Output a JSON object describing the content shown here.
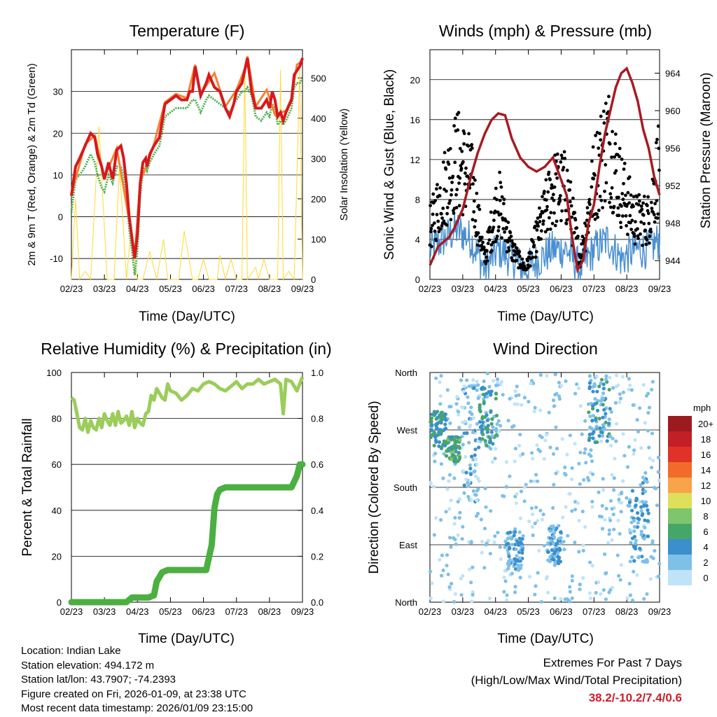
{
  "colors": {
    "temp_red": "#d7191c",
    "temp_orange": "#f58231",
    "dew_green": "#4daf4a",
    "solar_yellow": "#ffd92f",
    "wind_blue": "#4a90d0",
    "gust_black": "#000000",
    "pressure_maroon": "#a61c24",
    "rh_lightgreen": "#9acd5a",
    "precip_green": "#4caf41",
    "extremes_red": "#cc1f2b"
  },
  "footer": {
    "location": "Location: Indian Lake",
    "elevation": "Station elevation: 494.172 m",
    "latlon": "Station lat/lon: 43.7907; -74.2393",
    "created": "Figure created on Fri, 2026-01-09, at 23:38 UTC",
    "timestamp": "Most recent data timestamp: 2026/01/09 23:15:00"
  },
  "extremes": {
    "title": "Extremes For Past 7 Days",
    "subtitle": "(High/Low/Max Wind/Total Precipitation)",
    "values": "38.2/-10.2/7.4/0.6"
  },
  "chart_data": [
    {
      "id": "temperature",
      "type": "line",
      "title": "Temperature (F)",
      "xlabel": "Time (Day/UTC)",
      "ylabel": "2m & 9m T (Red, Orange) & 2m Td (Green)",
      "y2label": "Solar Insolation (Yellow)",
      "x_ticks": [
        "02/23",
        "03/23",
        "04/23",
        "05/23",
        "06/23",
        "07/23",
        "08/23",
        "09/23"
      ],
      "xlim": [
        0,
        168
      ],
      "ylim": [
        -15,
        40
      ],
      "y_ticks": [
        -10,
        0,
        10,
        20,
        30
      ],
      "y2lim": [
        0,
        570
      ],
      "y2_ticks": [
        0,
        100,
        200,
        300,
        400,
        500
      ],
      "series": [
        {
          "name": "2m T",
          "x": [
            0,
            3,
            6,
            10,
            14,
            17,
            19,
            22,
            24,
            27,
            30,
            33,
            36,
            38,
            40,
            42,
            44,
            46,
            48,
            50,
            52,
            54,
            55,
            57,
            60,
            64,
            68,
            72,
            76,
            80,
            84,
            86,
            88,
            90,
            94,
            98,
            100,
            104,
            108,
            112,
            115,
            118,
            120,
            122,
            124,
            126,
            128,
            131,
            134,
            138,
            142,
            144,
            146,
            148,
            150,
            152,
            154,
            156,
            160,
            162,
            164,
            166,
            168
          ],
          "y": [
            5,
            12,
            14,
            17,
            20,
            19,
            15,
            12,
            9,
            13,
            9,
            16,
            17,
            14,
            8,
            0,
            -5,
            -10,
            -4,
            8,
            13,
            14,
            12,
            15,
            17,
            19,
            27,
            28,
            29,
            28,
            28,
            30,
            30,
            36,
            29,
            32,
            34,
            31,
            30,
            26,
            24,
            27,
            30,
            31,
            32,
            35,
            38,
            30,
            26,
            26,
            28,
            26,
            30,
            28,
            24,
            25,
            23,
            25,
            28,
            34,
            35,
            36,
            38
          ]
        },
        {
          "name": "9m T",
          "x": [
            0,
            10,
            17,
            24,
            33,
            44,
            46,
            50,
            55,
            60,
            68,
            76,
            84,
            90,
            94,
            104,
            112,
            120,
            126,
            128,
            134,
            142,
            148,
            156,
            160,
            164,
            168
          ],
          "y": [
            5,
            17,
            19,
            9,
            16,
            -5,
            -10,
            8,
            12,
            17,
            27,
            29,
            28,
            36,
            29,
            34,
            26,
            30,
            35,
            38,
            26,
            30,
            24,
            25,
            28,
            36,
            37
          ]
        },
        {
          "name": "2m Td",
          "x": [
            0,
            3,
            6,
            10,
            14,
            17,
            19,
            22,
            24,
            27,
            30,
            33,
            36,
            38,
            40,
            42,
            44,
            46,
            48,
            50,
            52,
            54,
            55,
            57,
            60,
            64,
            68,
            72,
            76,
            80,
            84,
            86,
            88,
            90,
            94,
            98,
            100,
            104,
            108,
            112,
            115,
            118,
            120,
            122,
            124,
            126,
            128,
            131,
            134,
            138,
            142,
            144,
            146,
            148,
            150,
            152,
            154,
            156,
            160,
            162,
            164,
            166,
            168
          ],
          "y": [
            1,
            9,
            10,
            12,
            15,
            13,
            10,
            7,
            6,
            10,
            8,
            12,
            12,
            10,
            5,
            -3,
            -8,
            -14,
            -8,
            5,
            11,
            12,
            11,
            13,
            15,
            17,
            24,
            25,
            26,
            26,
            26,
            27,
            28,
            28,
            25,
            28,
            29,
            28,
            27,
            26,
            25,
            27,
            28,
            29,
            30,
            30,
            31,
            29,
            24,
            23,
            25,
            24,
            27,
            26,
            22,
            23,
            22,
            23,
            26,
            31,
            32,
            32,
            33
          ]
        },
        {
          "name": "Solar",
          "axis": "y2",
          "x": [
            0,
            3,
            6,
            10,
            14,
            20,
            26,
            31,
            35,
            40,
            43,
            48,
            52,
            57,
            62,
            67,
            70,
            78,
            82,
            88,
            92,
            96,
            100,
            106,
            108,
            112,
            116,
            120,
            124,
            126,
            128,
            130,
            134,
            136,
            140,
            144,
            150,
            152,
            154,
            158,
            162,
            166,
            168
          ],
          "y": [
            0,
            200,
            0,
            20,
            0,
            380,
            0,
            0,
            280,
            0,
            110,
            0,
            0,
            70,
            0,
            100,
            0,
            0,
            120,
            0,
            0,
            50,
            0,
            0,
            60,
            0,
            50,
            0,
            0,
            520,
            0,
            10,
            30,
            0,
            50,
            0,
            0,
            520,
            0,
            20,
            0,
            520,
            0
          ]
        }
      ]
    },
    {
      "id": "winds",
      "type": "line",
      "title": "Winds (mph) & Pressure (mb)",
      "xlabel": "Time (Day/UTC)",
      "ylabel": "Sonic Wind & Gust (Blue, Black)",
      "y2label": "Station Pressure (Maroon)",
      "x_ticks": [
        "02/23",
        "03/23",
        "04/23",
        "05/23",
        "06/23",
        "07/23",
        "08/23",
        "09/23"
      ],
      "xlim": [
        0,
        168
      ],
      "ylim": [
        0,
        23
      ],
      "y_ticks": [
        0,
        4,
        8,
        12,
        16,
        20
      ],
      "y2lim": [
        942.0,
        966.5
      ],
      "y2_ticks": [
        944,
        948,
        952,
        956,
        960,
        964
      ],
      "series": [
        {
          "name": "Sonic Wind",
          "x": [
            0,
            10,
            20,
            30,
            40,
            50,
            60,
            70,
            80,
            90,
            100,
            110,
            120,
            130,
            140,
            150,
            160,
            168
          ],
          "y": [
            3,
            4,
            5,
            4,
            1,
            3,
            2,
            1,
            2,
            3,
            3,
            1,
            3,
            4,
            2,
            3,
            3,
            4
          ]
        },
        {
          "name": "Gust",
          "x": [
            0,
            10,
            20,
            30,
            40,
            50,
            60,
            70,
            80,
            90,
            100,
            110,
            120,
            130,
            140,
            150,
            160,
            168
          ],
          "y": [
            5,
            9,
            12,
            10,
            2,
            8,
            3,
            1,
            5,
            9,
            9,
            2,
            10,
            14,
            9,
            6,
            6,
            12
          ]
        },
        {
          "name": "Pressure",
          "axis": "y2",
          "x": [
            0,
            6,
            10,
            14,
            18,
            24,
            30,
            35,
            40,
            45,
            50,
            55,
            60,
            66,
            72,
            78,
            84,
            90,
            95,
            100,
            104,
            108,
            112,
            116,
            120,
            124,
            128,
            132,
            136,
            140,
            144,
            148,
            152,
            156,
            160,
            164,
            168
          ],
          "y": [
            943.5,
            945.5,
            946,
            946.5,
            947.5,
            949.5,
            953,
            955.5,
            957.5,
            959,
            959.7,
            959.5,
            957,
            955,
            954,
            953.5,
            954,
            955,
            953,
            951,
            946.5,
            943,
            944,
            948,
            950,
            954,
            957.5,
            960,
            962.5,
            964,
            964.5,
            963,
            961,
            958,
            956,
            953,
            951
          ]
        }
      ]
    },
    {
      "id": "rh_precip",
      "type": "line",
      "title": "Relative Humidity (%) & Precipitation (in)",
      "xlabel": "Time (Day/UTC)",
      "ylabel": "Percent & Total Rainfall",
      "x_ticks": [
        "02/23",
        "03/23",
        "04/23",
        "05/23",
        "06/23",
        "07/23",
        "08/23",
        "09/23"
      ],
      "xlim": [
        0,
        168
      ],
      "ylim": [
        0,
        100
      ],
      "y_ticks": [
        0,
        20,
        40,
        60,
        80,
        100
      ],
      "y2lim": [
        0,
        1.0
      ],
      "y2_ticks": [
        "0.0",
        "0.2",
        "0.4",
        "0.6",
        "0.8",
        "1.0"
      ],
      "series": [
        {
          "name": "RH",
          "x": [
            0,
            2,
            4,
            6,
            8,
            10,
            12,
            14,
            16,
            18,
            20,
            22,
            24,
            26,
            28,
            30,
            32,
            34,
            36,
            38,
            40,
            42,
            44,
            46,
            48,
            50,
            52,
            54,
            56,
            58,
            60,
            62,
            64,
            66,
            68,
            70,
            72,
            76,
            80,
            84,
            88,
            92,
            96,
            100,
            104,
            108,
            112,
            116,
            120,
            124,
            128,
            132,
            136,
            140,
            144,
            148,
            152,
            154,
            156,
            160,
            164,
            168
          ],
          "y": [
            89,
            88,
            82,
            76,
            75,
            80,
            74,
            79,
            76,
            75,
            80,
            76,
            82,
            79,
            77,
            82,
            77,
            83,
            78,
            79,
            81,
            77,
            83,
            76,
            80,
            78,
            77,
            82,
            83,
            90,
            88,
            93,
            91,
            89,
            88,
            95,
            92,
            91,
            88,
            90,
            93,
            92,
            95,
            96,
            95,
            93,
            92,
            94,
            96,
            93,
            95,
            95,
            97,
            95,
            96,
            97,
            95,
            82,
            97,
            96,
            92,
            98
          ]
        },
        {
          "name": "Total Rainfall",
          "axis": "y2",
          "x": [
            0,
            40,
            44,
            56,
            60,
            62,
            66,
            70,
            94,
            98,
            102,
            104,
            106,
            108,
            112,
            124,
            128,
            132,
            150,
            156,
            160,
            164,
            166,
            168
          ],
          "y": [
            0,
            0,
            0.02,
            0.02,
            0.03,
            0.09,
            0.13,
            0.14,
            0.14,
            0.14,
            0.25,
            0.41,
            0.47,
            0.49,
            0.5,
            0.5,
            0.5,
            0.5,
            0.5,
            0.5,
            0.5,
            0.55,
            0.6,
            0.6
          ]
        }
      ]
    },
    {
      "id": "wind_direction",
      "type": "scatter",
      "title": "Wind Direction",
      "xlabel": "Time (Day/UTC)",
      "ylabel": "Direction (Colored By Speed)",
      "x_ticks": [
        "02/23",
        "03/23",
        "04/23",
        "05/23",
        "06/23",
        "07/23",
        "08/23",
        "09/23"
      ],
      "xlim": [
        0,
        168
      ],
      "ylim": [
        0,
        360
      ],
      "y_ticks": [
        "North",
        "East",
        "South",
        "West",
        "North"
      ],
      "colorbar": {
        "unit": "mph",
        "labels": [
          "20+",
          "18",
          "16",
          "14",
          "12",
          "10",
          "8",
          "6",
          "4",
          "2",
          "0"
        ],
        "colors": [
          "#9b1b1f",
          "#c21f26",
          "#e03228",
          "#f26b2b",
          "#f9a34b",
          "#dde05a",
          "#7ec66b",
          "#46a66a",
          "#3a8fcc",
          "#7ec0e8",
          "#bfe3f7"
        ]
      },
      "clusters": [
        {
          "x": [
            0,
            12
          ],
          "dir": [
            240,
            300
          ],
          "speed": 5
        },
        {
          "x": [
            12,
            22
          ],
          "dir": [
            220,
            260
          ],
          "speed": 6
        },
        {
          "x": [
            24,
            36
          ],
          "dir": [
            150,
            350
          ],
          "speed": 2
        },
        {
          "x": [
            36,
            50
          ],
          "dir": [
            240,
            340
          ],
          "speed": 4
        },
        {
          "x": [
            56,
            68
          ],
          "dir": [
            50,
            110
          ],
          "speed": 3
        },
        {
          "x": [
            86,
            96
          ],
          "dir": [
            60,
            120
          ],
          "speed": 3
        },
        {
          "x": [
            116,
            132
          ],
          "dir": [
            250,
            350
          ],
          "speed": 4
        },
        {
          "x": [
            146,
            160
          ],
          "dir": [
            60,
            200
          ],
          "speed": 3
        }
      ]
    }
  ]
}
